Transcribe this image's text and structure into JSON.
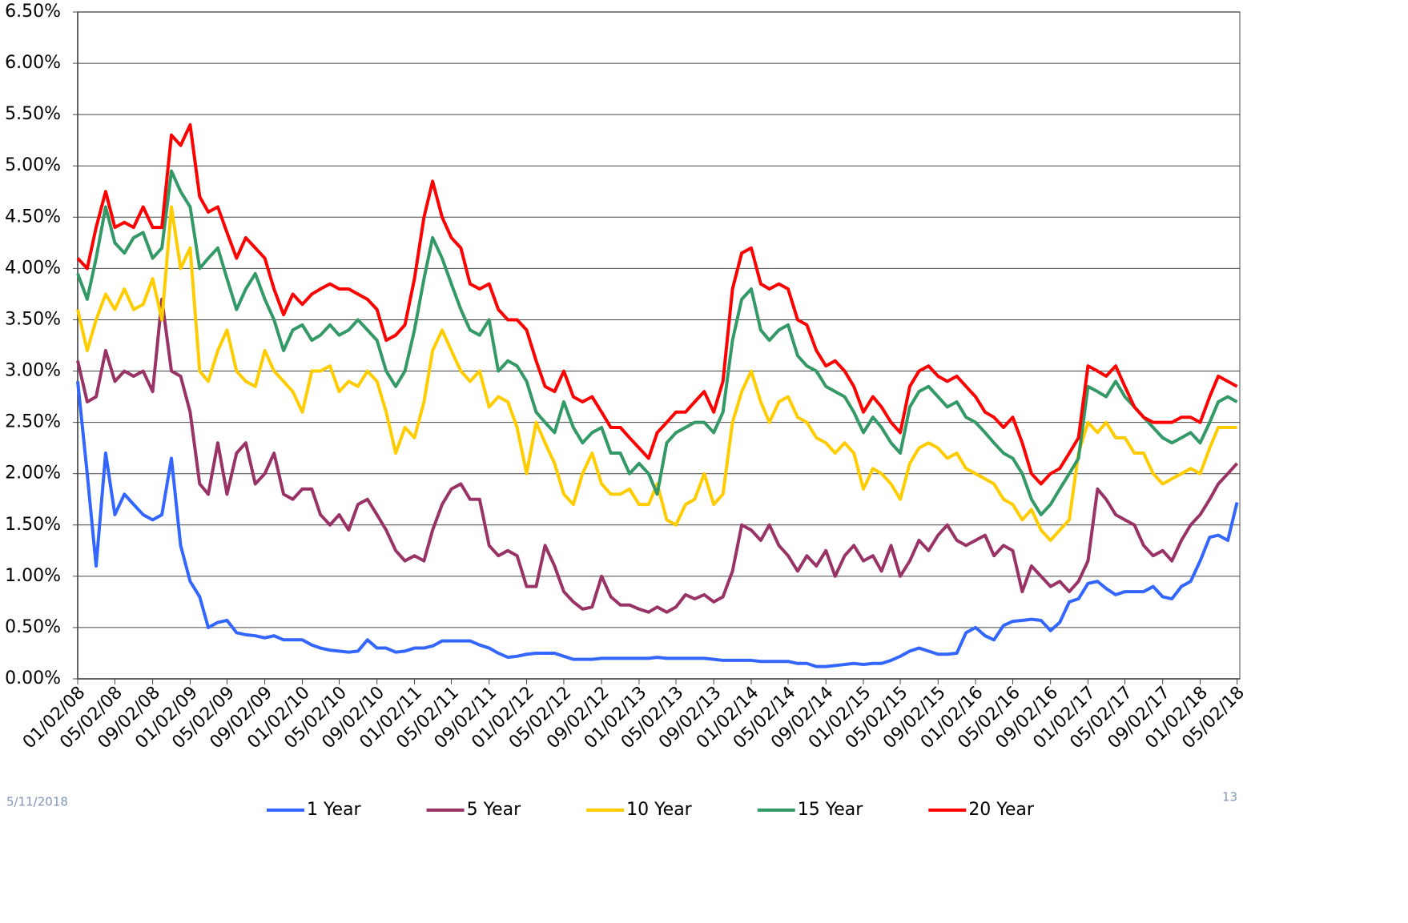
{
  "chart_data": {
    "type": "line",
    "x": [
      "01/02/08",
      "02/02/08",
      "03/02/08",
      "04/02/08",
      "05/02/08",
      "06/02/08",
      "07/02/08",
      "08/02/08",
      "09/02/08",
      "10/02/08",
      "11/02/08",
      "12/02/08",
      "01/02/09",
      "02/02/09",
      "03/02/09",
      "04/02/09",
      "05/02/09",
      "06/02/09",
      "07/02/09",
      "08/02/09",
      "09/02/09",
      "10/02/09",
      "11/02/09",
      "12/02/09",
      "01/02/10",
      "02/02/10",
      "03/02/10",
      "04/02/10",
      "05/02/10",
      "06/02/10",
      "07/02/10",
      "08/02/10",
      "09/02/10",
      "10/02/10",
      "11/02/10",
      "12/02/10",
      "01/02/11",
      "02/02/11",
      "03/02/11",
      "04/02/11",
      "05/02/11",
      "06/02/11",
      "07/02/11",
      "08/02/11",
      "09/02/11",
      "10/02/11",
      "11/02/11",
      "12/02/11",
      "01/02/12",
      "02/02/12",
      "03/02/12",
      "04/02/12",
      "05/02/12",
      "06/02/12",
      "07/02/12",
      "08/02/12",
      "09/02/12",
      "10/02/12",
      "11/02/12",
      "12/02/12",
      "01/02/13",
      "02/02/13",
      "03/02/13",
      "04/02/13",
      "05/02/13",
      "06/02/13",
      "07/02/13",
      "08/02/13",
      "09/02/13",
      "10/02/13",
      "11/02/13",
      "12/02/13",
      "01/02/14",
      "02/02/14",
      "03/02/14",
      "04/02/14",
      "05/02/14",
      "06/02/14",
      "07/02/14",
      "08/02/14",
      "09/02/14",
      "10/02/14",
      "11/02/14",
      "12/02/14",
      "01/02/15",
      "02/02/15",
      "03/02/15",
      "04/02/15",
      "05/02/15",
      "06/02/15",
      "07/02/15",
      "08/02/15",
      "09/02/15",
      "10/02/15",
      "11/02/15",
      "12/02/15",
      "01/02/16",
      "02/02/16",
      "03/02/16",
      "04/02/16",
      "05/02/16",
      "06/02/16",
      "07/02/16",
      "08/02/16",
      "09/02/16",
      "10/02/16",
      "11/02/16",
      "12/02/16",
      "01/02/17",
      "02/02/17",
      "03/02/17",
      "04/02/17",
      "05/02/17",
      "06/02/17",
      "07/02/17",
      "08/02/17",
      "09/02/17",
      "10/02/17",
      "11/02/17",
      "12/02/17",
      "01/02/18",
      "02/02/18",
      "03/02/18",
      "04/02/18",
      "05/02/18"
    ],
    "xlim": [
      "01/02/08",
      "05/11/18"
    ],
    "xticks": [
      "01/02/08",
      "05/02/08",
      "09/02/08",
      "01/02/09",
      "05/02/09",
      "09/02/09",
      "01/02/10",
      "05/02/10",
      "09/02/10",
      "01/02/11",
      "05/02/11",
      "09/02/11",
      "01/02/12",
      "05/02/12",
      "09/02/12",
      "01/02/13",
      "05/02/13",
      "09/02/13",
      "01/02/14",
      "05/02/14",
      "09/02/14",
      "01/02/15",
      "05/02/15",
      "09/02/15",
      "01/02/16",
      "05/02/16",
      "09/02/16",
      "01/02/17",
      "05/02/17",
      "09/02/17",
      "01/02/18",
      "05/02/18"
    ],
    "ylim": [
      0,
      6.5
    ],
    "yticks": [
      {
        "value": 0,
        "label": "0.00%"
      },
      {
        "value": 0.5,
        "label": "0.50%"
      },
      {
        "value": 1,
        "label": "1.00%"
      },
      {
        "value": 1.5,
        "label": "1.50%"
      },
      {
        "value": 2,
        "label": "2.00%"
      },
      {
        "value": 2.5,
        "label": "2.50%"
      },
      {
        "value": 3,
        "label": "3.00%"
      },
      {
        "value": 3.5,
        "label": "3.50%"
      },
      {
        "value": 4,
        "label": "4.00%"
      },
      {
        "value": 4.5,
        "label": "4.50%"
      },
      {
        "value": 5,
        "label": "5.00%"
      },
      {
        "value": 5.5,
        "label": "5.50%"
      },
      {
        "value": 6,
        "label": "6.00%"
      },
      {
        "value": 6.5,
        "label": "6.50%"
      }
    ],
    "grid": true,
    "legend": "bottom",
    "series": [
      {
        "name": "1 Year",
        "color": "#3366ff",
        "values": [
          2.9,
          2.0,
          1.1,
          2.2,
          1.6,
          1.8,
          1.7,
          1.6,
          1.55,
          1.6,
          2.15,
          1.3,
          0.95,
          0.8,
          0.5,
          0.55,
          0.57,
          0.45,
          0.43,
          0.42,
          0.4,
          0.42,
          0.38,
          0.38,
          0.38,
          0.33,
          0.3,
          0.28,
          0.27,
          0.26,
          0.27,
          0.38,
          0.3,
          0.3,
          0.26,
          0.27,
          0.3,
          0.3,
          0.32,
          0.37,
          0.37,
          0.37,
          0.37,
          0.33,
          0.3,
          0.25,
          0.21,
          0.22,
          0.24,
          0.25,
          0.25,
          0.25,
          0.22,
          0.19,
          0.19,
          0.19,
          0.2,
          0.2,
          0.2,
          0.2,
          0.2,
          0.2,
          0.21,
          0.2,
          0.2,
          0.2,
          0.2,
          0.2,
          0.19,
          0.18,
          0.18,
          0.18,
          0.18,
          0.17,
          0.17,
          0.17,
          0.17,
          0.15,
          0.15,
          0.12,
          0.12,
          0.13,
          0.14,
          0.15,
          0.14,
          0.15,
          0.15,
          0.18,
          0.22,
          0.27,
          0.3,
          0.27,
          0.24,
          0.24,
          0.25,
          0.45,
          0.5,
          0.42,
          0.38,
          0.52,
          0.56,
          0.57,
          0.58,
          0.57,
          0.47,
          0.55,
          0.75,
          0.78,
          0.93,
          0.95,
          0.88,
          0.82,
          0.85,
          0.85,
          0.85,
          0.9,
          0.8,
          0.78,
          0.9,
          0.95,
          1.15,
          1.38,
          1.4,
          1.35,
          1.72
        ]
      },
      {
        "name": "5 Year",
        "color": "#993366",
        "values": [
          3.1,
          2.7,
          2.75,
          3.2,
          2.9,
          3.0,
          2.95,
          3.0,
          2.8,
          3.7,
          3.0,
          2.95,
          2.6,
          1.9,
          1.8,
          2.3,
          1.8,
          2.2,
          2.3,
          1.9,
          2.0,
          2.2,
          1.8,
          1.75,
          1.85,
          1.85,
          1.6,
          1.5,
          1.6,
          1.45,
          1.7,
          1.75,
          1.6,
          1.45,
          1.25,
          1.15,
          1.2,
          1.15,
          1.45,
          1.7,
          1.85,
          1.9,
          1.75,
          1.75,
          1.3,
          1.2,
          1.25,
          1.2,
          0.9,
          0.9,
          1.3,
          1.1,
          0.85,
          0.75,
          0.68,
          0.7,
          1.0,
          0.8,
          0.72,
          0.72,
          0.68,
          0.65,
          0.7,
          0.65,
          0.7,
          0.82,
          0.78,
          0.82,
          0.75,
          0.8,
          1.05,
          1.5,
          1.45,
          1.35,
          1.5,
          1.3,
          1.2,
          1.05,
          1.2,
          1.1,
          1.25,
          1.0,
          1.2,
          1.3,
          1.15,
          1.2,
          1.05,
          1.3,
          1.0,
          1.15,
          1.35,
          1.25,
          1.4,
          1.5,
          1.35,
          1.3,
          1.35,
          1.4,
          1.2,
          1.3,
          1.25,
          0.85,
          1.1,
          1.0,
          0.9,
          0.95,
          0.85,
          0.95,
          1.15,
          1.85,
          1.75,
          1.6,
          1.55,
          1.5,
          1.3,
          1.2,
          1.25,
          1.15,
          1.35,
          1.5,
          1.6,
          1.75,
          1.9,
          2.0,
          2.1
        ]
      },
      {
        "name": "10 Year",
        "color": "#ffcc00",
        "values": [
          3.6,
          3.2,
          3.5,
          3.75,
          3.6,
          3.8,
          3.6,
          3.65,
          3.9,
          3.5,
          4.6,
          4.0,
          4.2,
          3.0,
          2.9,
          3.2,
          3.4,
          3.0,
          2.9,
          2.85,
          3.2,
          3.0,
          2.9,
          2.8,
          2.6,
          3.0,
          3.0,
          3.05,
          2.8,
          2.9,
          2.85,
          3.0,
          2.9,
          2.6,
          2.2,
          2.45,
          2.35,
          2.7,
          3.2,
          3.4,
          3.2,
          3.0,
          2.9,
          3.0,
          2.65,
          2.75,
          2.7,
          2.45,
          2.0,
          2.5,
          2.3,
          2.1,
          1.8,
          1.7,
          2.0,
          2.2,
          1.9,
          1.8,
          1.8,
          1.85,
          1.7,
          1.7,
          1.9,
          1.55,
          1.5,
          1.7,
          1.75,
          2.0,
          1.7,
          1.8,
          2.5,
          2.8,
          3.0,
          2.7,
          2.5,
          2.7,
          2.75,
          2.55,
          2.5,
          2.35,
          2.3,
          2.2,
          2.3,
          2.2,
          1.85,
          2.05,
          2.0,
          1.9,
          1.75,
          2.1,
          2.25,
          2.3,
          2.25,
          2.15,
          2.2,
          2.05,
          2.0,
          1.95,
          1.9,
          1.75,
          1.7,
          1.55,
          1.65,
          1.45,
          1.35,
          1.45,
          1.55,
          2.2,
          2.5,
          2.4,
          2.5,
          2.35,
          2.35,
          2.2,
          2.2,
          2.0,
          1.9,
          1.95,
          2.0,
          2.05,
          2.0,
          2.25,
          2.45,
          2.45,
          2.45
        ]
      },
      {
        "name": "15 Year",
        "color": "#339966",
        "values": [
          3.95,
          3.7,
          4.1,
          4.6,
          4.25,
          4.15,
          4.3,
          4.35,
          4.1,
          4.2,
          4.95,
          4.75,
          4.6,
          4.0,
          4.1,
          4.2,
          3.9,
          3.6,
          3.8,
          3.95,
          3.7,
          3.5,
          3.2,
          3.4,
          3.45,
          3.3,
          3.35,
          3.45,
          3.35,
          3.4,
          3.5,
          3.4,
          3.3,
          3.0,
          2.85,
          3.0,
          3.4,
          3.9,
          4.3,
          4.1,
          3.85,
          3.6,
          3.4,
          3.35,
          3.5,
          3.0,
          3.1,
          3.05,
          2.9,
          2.6,
          2.5,
          2.4,
          2.7,
          2.45,
          2.3,
          2.4,
          2.45,
          2.2,
          2.2,
          2.0,
          2.1,
          2.0,
          1.8,
          2.3,
          2.4,
          2.45,
          2.5,
          2.5,
          2.4,
          2.6,
          3.3,
          3.7,
          3.8,
          3.4,
          3.3,
          3.4,
          3.45,
          3.15,
          3.05,
          3.0,
          2.85,
          2.8,
          2.75,
          2.6,
          2.4,
          2.55,
          2.45,
          2.3,
          2.2,
          2.65,
          2.8,
          2.85,
          2.75,
          2.65,
          2.7,
          2.55,
          2.5,
          2.4,
          2.3,
          2.2,
          2.15,
          2.0,
          1.75,
          1.6,
          1.7,
          1.85,
          2.0,
          2.15,
          2.85,
          2.8,
          2.75,
          2.9,
          2.75,
          2.65,
          2.55,
          2.45,
          2.35,
          2.3,
          2.35,
          2.4,
          2.3,
          2.5,
          2.7,
          2.75,
          2.7
        ]
      },
      {
        "name": "20 Year",
        "color": "#ff0000",
        "values": [
          4.1,
          4.0,
          4.4,
          4.75,
          4.4,
          4.45,
          4.4,
          4.6,
          4.4,
          4.4,
          5.3,
          5.2,
          5.4,
          4.7,
          4.55,
          4.6,
          4.35,
          4.1,
          4.3,
          4.2,
          4.1,
          3.8,
          3.55,
          3.75,
          3.65,
          3.75,
          3.8,
          3.85,
          3.8,
          3.8,
          3.75,
          3.7,
          3.6,
          3.3,
          3.35,
          3.45,
          3.9,
          4.5,
          4.85,
          4.5,
          4.3,
          4.2,
          3.85,
          3.8,
          3.85,
          3.6,
          3.5,
          3.5,
          3.4,
          3.1,
          2.85,
          2.8,
          3.0,
          2.75,
          2.7,
          2.75,
          2.6,
          2.45,
          2.45,
          2.35,
          2.25,
          2.15,
          2.4,
          2.5,
          2.6,
          2.6,
          2.7,
          2.8,
          2.6,
          2.9,
          3.8,
          4.15,
          4.2,
          3.85,
          3.8,
          3.85,
          3.8,
          3.5,
          3.45,
          3.2,
          3.05,
          3.1,
          3.0,
          2.85,
          2.6,
          2.75,
          2.65,
          2.5,
          2.4,
          2.85,
          3.0,
          3.05,
          2.95,
          2.9,
          2.95,
          2.85,
          2.75,
          2.6,
          2.55,
          2.45,
          2.55,
          2.3,
          2.0,
          1.9,
          2.0,
          2.05,
          2.2,
          2.35,
          3.05,
          3.0,
          2.95,
          3.05,
          2.85,
          2.65,
          2.55,
          2.5,
          2.5,
          2.5,
          2.55,
          2.55,
          2.5,
          2.75,
          2.95,
          2.9,
          2.85
        ]
      }
    ]
  },
  "slide_date": "5/11/2018",
  "slide_number": "13"
}
